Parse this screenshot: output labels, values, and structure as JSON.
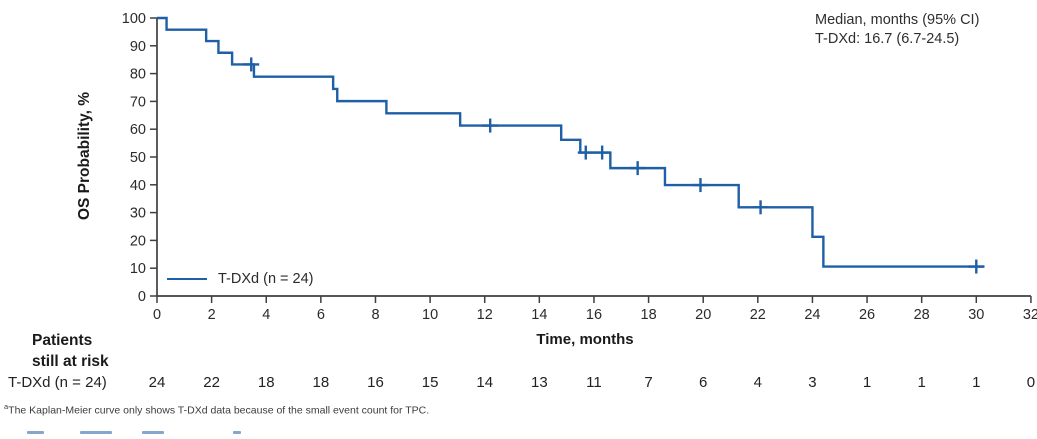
{
  "colors": {
    "curve": "#1f5fa6",
    "axis": "#3f3f3f",
    "tick_text": "#2b2b2b"
  },
  "annotation": {
    "line1": "Median, months (95% CI)",
    "line2": "T-DXd: 16.7 (6.7-24.5)"
  },
  "axes": {
    "y_title": "OS Probability, %",
    "x_title": "Time, months"
  },
  "legend": {
    "label": "T-DXd (n = 24)"
  },
  "risk_table": {
    "header_line1": "Patients",
    "header_line2": "still at risk",
    "row_label": "T-DXd (n = 24)",
    "months": [
      0,
      2,
      4,
      6,
      8,
      10,
      12,
      14,
      16,
      18,
      20,
      22,
      24,
      26,
      28,
      30,
      32
    ],
    "values": [
      24,
      22,
      18,
      18,
      16,
      15,
      14,
      13,
      11,
      7,
      6,
      4,
      3,
      1,
      1,
      1,
      0
    ]
  },
  "footnote": {
    "marker": "a",
    "text": "The Kaplan-Meier curve only shows T-DXd data because of the small event count for TPC."
  },
  "chart_data": {
    "type": "line",
    "subtype": "kaplan-meier-step",
    "title": "",
    "xlabel": "Time, months",
    "ylabel": "OS Probability, %",
    "xlim": [
      0,
      32
    ],
    "ylim": [
      0,
      100
    ],
    "x_ticks": [
      0,
      2,
      4,
      6,
      8,
      10,
      12,
      14,
      16,
      18,
      20,
      22,
      24,
      26,
      28,
      30,
      32
    ],
    "y_ticks": [
      0,
      10,
      20,
      30,
      40,
      50,
      60,
      70,
      80,
      90,
      100
    ],
    "grid": false,
    "legend_position": "inside-bottom-left",
    "median_months": 16.7,
    "median_ci": "6.7-24.5",
    "series": [
      {
        "name": "T-DXd (n = 24)",
        "color": "#1f5fa6",
        "steps": [
          [
            0,
            100
          ],
          [
            0.35,
            95.8
          ],
          [
            1.8,
            91.7
          ],
          [
            2.25,
            87.5
          ],
          [
            2.75,
            83.3
          ],
          [
            3.55,
            78.9
          ],
          [
            6.45,
            74.5
          ],
          [
            6.6,
            70.1
          ],
          [
            8.4,
            65.7
          ],
          [
            11.1,
            61.3
          ],
          [
            14.8,
            56.2
          ],
          [
            15.5,
            51.6
          ],
          [
            16.6,
            46.0
          ],
          [
            18.6,
            39.9
          ],
          [
            21.3,
            31.9
          ],
          [
            24.0,
            21.3
          ],
          [
            24.4,
            10.6
          ]
        ],
        "end_time": 30.3,
        "censor_marks": [
          [
            3.45,
            83.3
          ],
          [
            12.2,
            61.3
          ],
          [
            15.7,
            51.6
          ],
          [
            16.3,
            51.6
          ],
          [
            17.6,
            46.0
          ],
          [
            19.9,
            39.9
          ],
          [
            22.1,
            31.9
          ],
          [
            30.0,
            10.6
          ]
        ],
        "at_risk": [
          24,
          22,
          18,
          18,
          16,
          15,
          14,
          13,
          11,
          7,
          6,
          4,
          3,
          1,
          1,
          1,
          0
        ]
      }
    ]
  }
}
